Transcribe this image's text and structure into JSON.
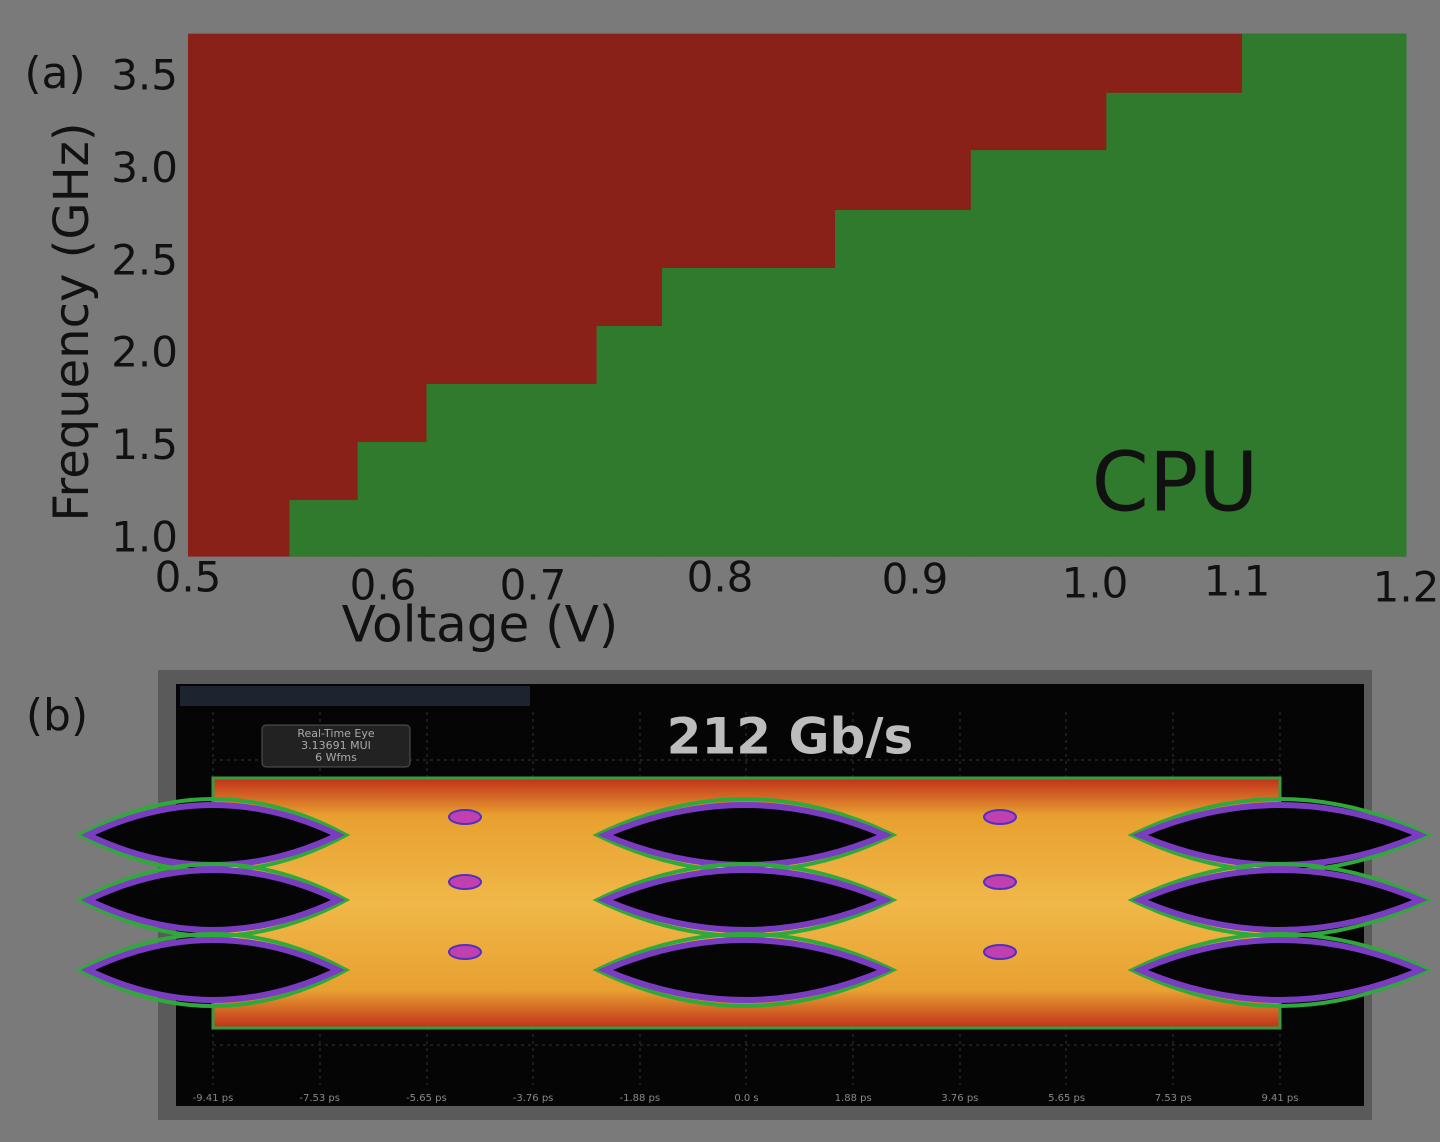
{
  "chart_data": {
    "type": "shmoo",
    "panel_label": "(a)",
    "x_label": "Voltage (V)",
    "y_label": "Frequency (GHz)",
    "annotation": "CPU",
    "xlim": [
      0.5,
      1.2
    ],
    "xticks": [
      0.5,
      0.6,
      0.7,
      0.8,
      0.9,
      {
        "value": 1,
        "label": "1.0"
      },
      1.1,
      1.2
    ],
    "ylim": [
      0.91,
      3.74
    ],
    "yticks": [
      {
        "value": 1,
        "label": "1.0"
      },
      1.5,
      {
        "value": 2,
        "label": "2.0"
      },
      2.5,
      {
        "value": 3,
        "label": "3.0"
      },
      3.5
    ],
    "x_edges": [
      0.5,
      0.552,
      0.587,
      0.629,
      0.734,
      0.769,
      0.859,
      0.931,
      1.008,
      1.103,
      1.2
    ],
    "pass_max_freq": [
      null,
      1.216,
      1.53,
      1.844,
      2.158,
      2.472,
      2.786,
      3.11,
      3.42,
      3.74
    ],
    "pass_color": "#2f7a2d",
    "fail_color": "#8a2119"
  },
  "panel_b": {
    "label": "(b)",
    "title": "212 Gb/s",
    "info": [
      "Real-Time Eye",
      "3.13691 MUI",
      "6 Wfms"
    ],
    "time_labels": [
      "-9.41 ps",
      "-7.53 ps",
      "-5.65 ps",
      "-3.76 ps",
      "-1.88 ps",
      "0.0 s",
      "1.88 ps",
      "3.76 ps",
      "5.65 ps",
      "7.53 ps",
      "9.41 ps"
    ]
  }
}
